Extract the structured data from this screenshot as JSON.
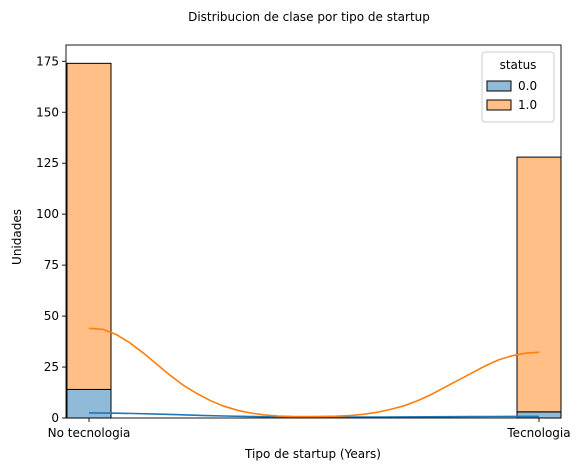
{
  "chart_data": {
    "type": "bar",
    "title": "Distribucion de clase por tipo de startup",
    "xlabel": "Tipo de startup (Years)",
    "ylabel": "Unidades",
    "categories": [
      "No tecnologia",
      "Tecnologia"
    ],
    "ylim": [
      0,
      183
    ],
    "yticks": [
      0,
      25,
      50,
      75,
      100,
      125,
      150,
      175
    ],
    "grid": false,
    "stacked": true,
    "series": [
      {
        "name": "0.0",
        "color": "#1f77b4",
        "values": [
          14,
          3
        ]
      },
      {
        "name": "1.0",
        "color": "#ff7f0e",
        "values": [
          160,
          125
        ]
      }
    ],
    "kde": [
      {
        "series": "0.0",
        "color": "#1f77b4",
        "points": [
          [
            0,
            2.5
          ],
          [
            0.05,
            2.4
          ],
          [
            0.1,
            2.2
          ],
          [
            0.15,
            1.9
          ],
          [
            0.2,
            1.6
          ],
          [
            0.25,
            1.3
          ],
          [
            0.3,
            1.0
          ],
          [
            0.35,
            0.8
          ],
          [
            0.4,
            0.6
          ],
          [
            0.45,
            0.5
          ],
          [
            0.5,
            0.45
          ],
          [
            0.55,
            0.45
          ],
          [
            0.6,
            0.45
          ],
          [
            0.65,
            0.5
          ],
          [
            0.7,
            0.55
          ],
          [
            0.75,
            0.6
          ],
          [
            0.8,
            0.65
          ],
          [
            0.85,
            0.7
          ],
          [
            0.9,
            0.75
          ],
          [
            0.95,
            0.78
          ],
          [
            1,
            0.8
          ]
        ]
      },
      {
        "series": "1.0",
        "color": "#ff7f0e",
        "points": [
          [
            0,
            44
          ],
          [
            0.03,
            43.5
          ],
          [
            0.06,
            41
          ],
          [
            0.09,
            37
          ],
          [
            0.12,
            32
          ],
          [
            0.15,
            26.5
          ],
          [
            0.18,
            21
          ],
          [
            0.21,
            16
          ],
          [
            0.24,
            12
          ],
          [
            0.27,
            8.5
          ],
          [
            0.3,
            5.8
          ],
          [
            0.33,
            3.8
          ],
          [
            0.36,
            2.4
          ],
          [
            0.39,
            1.5
          ],
          [
            0.42,
            1.0
          ],
          [
            0.45,
            0.8
          ],
          [
            0.5,
            0.75
          ],
          [
            0.55,
            0.9
          ],
          [
            0.58,
            1.2
          ],
          [
            0.61,
            1.8
          ],
          [
            0.64,
            2.8
          ],
          [
            0.67,
            4.2
          ],
          [
            0.7,
            6.0
          ],
          [
            0.73,
            8.5
          ],
          [
            0.76,
            11.5
          ],
          [
            0.79,
            15.0
          ],
          [
            0.82,
            18.5
          ],
          [
            0.85,
            22.0
          ],
          [
            0.88,
            25.5
          ],
          [
            0.91,
            28.5
          ],
          [
            0.94,
            30.5
          ],
          [
            0.97,
            31.8
          ],
          [
            1,
            32.3
          ]
        ]
      }
    ],
    "legend": {
      "title": "status",
      "placement": "top-right"
    }
  }
}
